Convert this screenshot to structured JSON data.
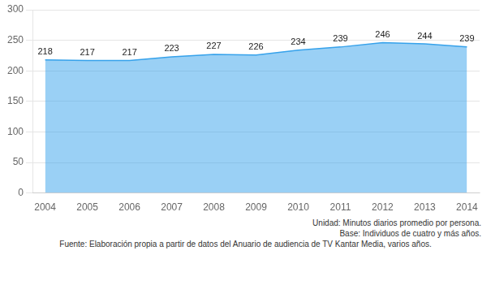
{
  "chart_data": {
    "type": "area",
    "x": [
      2004,
      2005,
      2006,
      2007,
      2008,
      2009,
      2010,
      2011,
      2012,
      2013,
      2014
    ],
    "values": [
      218,
      217,
      217,
      223,
      227,
      226,
      234,
      239,
      246,
      244,
      239
    ],
    "xlim": [
      2003.7,
      2014.3
    ],
    "xticks": [
      2004,
      2005,
      2006,
      2007,
      2008,
      2009,
      2010,
      2011,
      2012,
      2013,
      2014
    ],
    "ylim": [
      0,
      300
    ],
    "yticks": [
      0,
      50,
      100,
      150,
      200,
      250,
      300
    ],
    "grid": "y",
    "data_labels": true,
    "annotations": [
      "Unidad: Minutos diarios promedio por persona.",
      "Base: Individuos de cuatro y más años.",
      "Fuente: Elaboración propia a partir de datos del Anuario de audiencia de TV Kantar Media, varios años."
    ]
  }
}
